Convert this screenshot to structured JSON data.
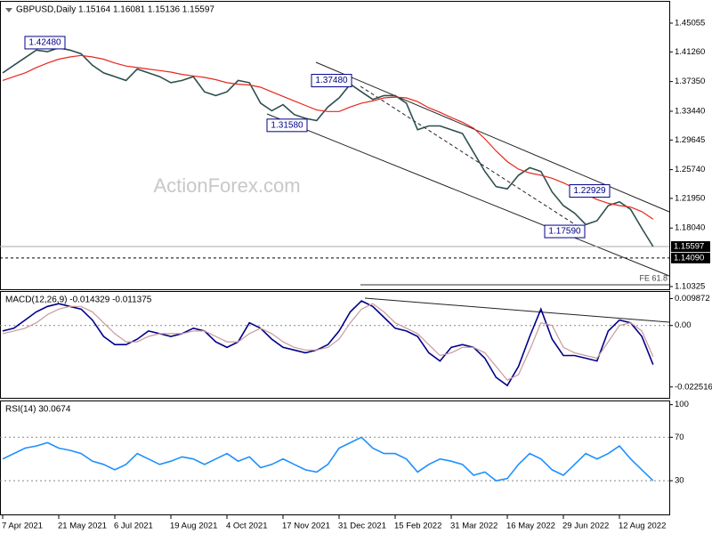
{
  "chart_data": [
    {
      "type": "line",
      "title": "GBPUSD,Daily  1.15164 1.16081 1.15136 1.15597",
      "watermark": "ActionForex.com",
      "ylim": [
        1.0997,
        1.4787
      ],
      "yticks": [
        1.45055,
        {
          "value": 1.4126,
          "label": "1.41260"
        },
        {
          "value": 1.3735,
          "label": "1.37350"
        },
        {
          "value": 1.3344,
          "label": "1.33440"
        },
        1.29645,
        {
          "value": 1.2574,
          "label": "1.25740"
        },
        {
          "value": 1.2195,
          "label": "1.21950"
        },
        {
          "value": 1.1804,
          "label": "1.18040"
        },
        1.10325
      ],
      "levels": [
        1.15597,
        {
          "value": 1.1409,
          "label": "1.14090"
        }
      ],
      "fe_level": {
        "value": 1.1055,
        "label": "FE 61.8"
      },
      "annotations": [
        {
          "value": 1.4248,
          "label": "1.42480"
        },
        {
          "value": 1.3748,
          "label": "1.37480"
        },
        {
          "value": 1.3158,
          "label": "1.31580"
        },
        {
          "value": 1.22929,
          "label": "1.22929"
        },
        {
          "value": 1.1759,
          "label": "1.17590"
        }
      ],
      "series": [
        {
          "color": "#2f4f4f",
          "values": [
            1.385,
            1.395,
            1.405,
            1.415,
            1.413,
            1.418,
            1.415,
            1.41,
            1.395,
            1.385,
            1.38,
            1.375,
            1.39,
            1.385,
            1.38,
            1.372,
            1.375,
            1.38,
            1.36,
            1.355,
            1.36,
            1.375,
            1.372,
            1.345,
            1.335,
            1.343,
            1.33,
            1.325,
            1.322,
            1.34,
            1.352,
            1.37,
            1.36,
            1.35,
            1.355,
            1.355,
            1.345,
            1.31,
            1.315,
            1.315,
            1.31,
            1.305,
            1.28,
            1.255,
            1.235,
            1.232,
            1.25,
            1.26,
            1.255,
            1.228,
            1.21,
            1.2,
            1.185,
            1.19,
            1.21,
            1.215,
            1.205,
            1.18,
            1.15597
          ]
        },
        {
          "color": "#e8261c",
          "values": [
            1.375,
            1.38,
            1.385,
            1.392,
            1.398,
            1.403,
            1.406,
            1.408,
            1.406,
            1.403,
            1.398,
            1.394,
            1.392,
            1.39,
            1.388,
            1.386,
            1.383,
            1.381,
            1.379,
            1.376,
            1.372,
            1.37,
            1.369,
            1.366,
            1.36,
            1.354,
            1.348,
            1.342,
            1.336,
            1.334,
            1.334,
            1.34,
            1.345,
            1.348,
            1.352,
            1.353,
            1.352,
            1.347,
            1.339,
            1.333,
            1.326,
            1.32,
            1.312,
            1.298,
            1.282,
            1.268,
            1.258,
            1.253,
            1.25,
            1.246,
            1.24,
            1.233,
            1.225,
            1.218,
            1.213,
            1.21,
            1.208,
            1.202,
            1.192
          ]
        }
      ]
    },
    {
      "type": "line",
      "title": "MACD(12,26,9) -0.014329 -0.011375",
      "ylim": [
        -0.0265,
        0.0123
      ],
      "yticks": [
        0.009872,
        {
          "value": 0,
          "label": "0.00"
        },
        -0.022516
      ],
      "levels": [
        0
      ],
      "series": [
        {
          "color": "#00008b",
          "values": [
            -0.002,
            -0.001,
            0.002,
            0.005,
            0.007,
            0.008,
            0.007,
            0.006,
            0.002,
            -0.004,
            -0.007,
            -0.007,
            -0.005,
            -0.002,
            -0.003,
            -0.004,
            -0.003,
            -0.001,
            -0.002,
            -0.006,
            -0.008,
            -0.006,
            0.001,
            -0.001,
            -0.005,
            -0.008,
            -0.009,
            -0.01,
            -0.009,
            -0.007,
            -0.002,
            0.005,
            0.009,
            0.007,
            0.003,
            -0.001,
            -0.002,
            -0.004,
            -0.01,
            -0.013,
            -0.008,
            -0.007,
            -0.008,
            -0.012,
            -0.019,
            -0.022,
            -0.015,
            -0.004,
            0.006,
            -0.005,
            -0.011,
            -0.011,
            -0.012,
            -0.013,
            -0.002,
            0.002,
            0.001,
            -0.004,
            -0.014329
          ]
        },
        {
          "color": "#c89a9a",
          "values": [
            -0.003,
            -0.002,
            -0.001,
            0.001,
            0.004,
            0.006,
            0.007,
            0.007,
            0.005,
            0.001,
            -0.003,
            -0.006,
            -0.006,
            -0.004,
            -0.003,
            -0.003,
            -0.003,
            -0.002,
            -0.002,
            -0.004,
            -0.006,
            -0.006,
            -0.003,
            -0.001,
            -0.003,
            -0.006,
            -0.008,
            -0.009,
            -0.009,
            -0.008,
            -0.005,
            0.001,
            0.006,
            0.008,
            0.005,
            0.001,
            -0.001,
            -0.003,
            -0.007,
            -0.011,
            -0.01,
            -0.008,
            -0.008,
            -0.01,
            -0.015,
            -0.02,
            -0.018,
            -0.009,
            0.001,
            0.0,
            -0.008,
            -0.01,
            -0.011,
            -0.012,
            -0.006,
            0.0,
            0.001,
            -0.002,
            -0.011375
          ]
        }
      ]
    },
    {
      "type": "line",
      "title": "RSI(14) 30.0674",
      "ylim": [
        -1,
        103
      ],
      "yticks": [
        100,
        70,
        30
      ],
      "levels": [
        70,
        30
      ],
      "series": [
        {
          "color": "#1e90ff",
          "values": [
            50,
            55,
            60,
            62,
            65,
            60,
            58,
            55,
            48,
            45,
            40,
            45,
            55,
            50,
            45,
            48,
            52,
            50,
            45,
            50,
            55,
            48,
            52,
            42,
            45,
            50,
            45,
            40,
            38,
            45,
            60,
            65,
            70,
            60,
            55,
            55,
            50,
            38,
            45,
            50,
            48,
            45,
            35,
            38,
            30,
            32,
            45,
            55,
            50,
            40,
            35,
            45,
            55,
            50,
            55,
            62,
            50,
            40,
            30.0674
          ]
        }
      ],
      "categories": [
        "7 Apr 2021",
        null,
        null,
        null,
        null,
        "21 May 2021",
        null,
        null,
        null,
        null,
        "6 Jul 2021",
        null,
        null,
        null,
        null,
        "19 Aug 2021",
        null,
        null,
        null,
        null,
        "4 Oct 2021",
        null,
        null,
        null,
        null,
        "17 Nov 2021",
        null,
        null,
        null,
        null,
        "31 Dec 2021",
        null,
        null,
        null,
        null,
        "15 Feb 2022",
        null,
        null,
        null,
        null,
        "31 Mar 2022",
        null,
        null,
        null,
        null,
        "16 May 2022",
        null,
        null,
        null,
        null,
        "29 Jun 2022",
        null,
        null,
        null,
        null,
        "12 Aug 2022",
        null,
        null,
        null
      ]
    }
  ]
}
